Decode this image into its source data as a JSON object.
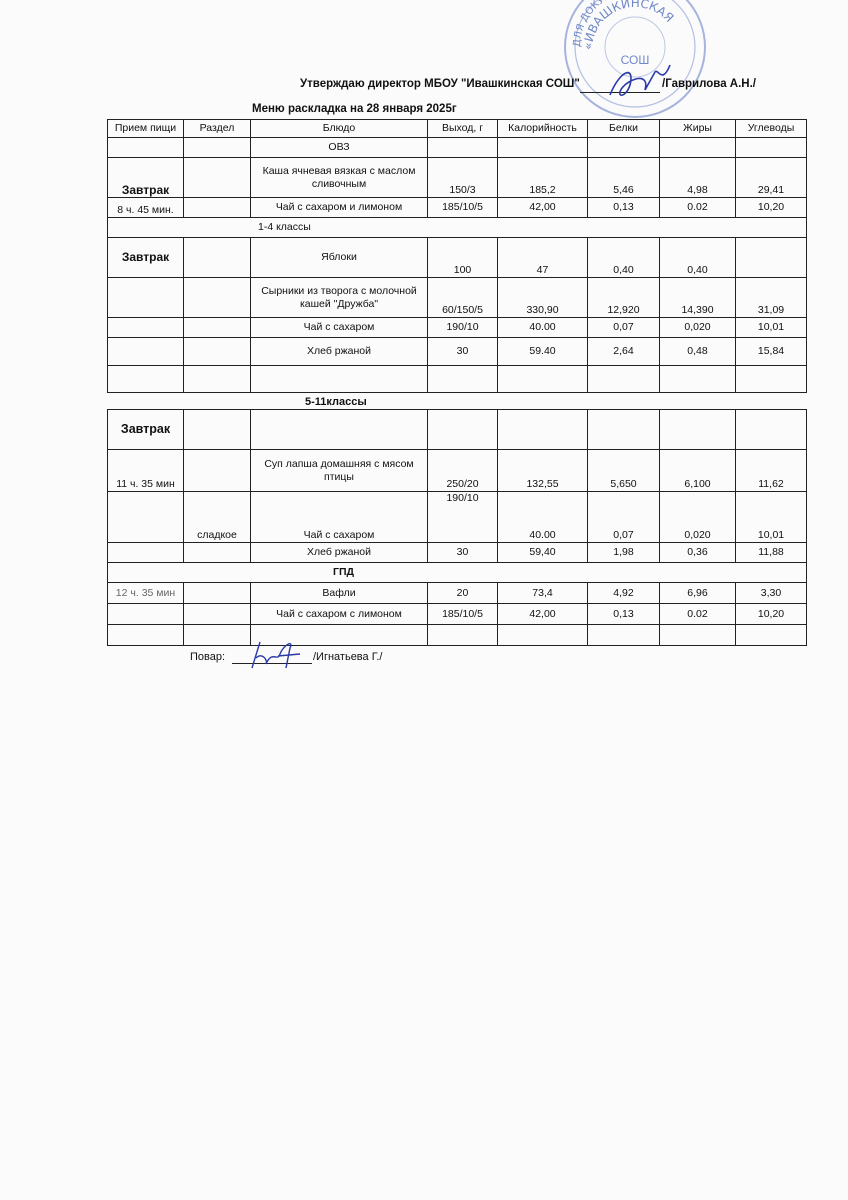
{
  "header": {
    "approval": "Утверждаю директор МБОУ \"Ивашкинская СОШ\"",
    "director": "/Гаврилова А.Н./",
    "title": "Меню раскладка на 28 января  2025г"
  },
  "stamp": {
    "text_outer": "ДЛЯ ДОКУМЕНТОВ",
    "text_mid": "«ИВАШКИНСКАЯ",
    "text_inner": "СОШ",
    "color": "#6f86c9"
  },
  "columns": [
    "Прием пищи",
    "Раздел",
    "Блюдо",
    "Выход, г",
    "Калорийность",
    "Белки",
    "Жиры",
    "Углеводы"
  ],
  "table1": [
    {
      "cells": [
        "",
        "",
        "ОВЗ",
        "",
        "",
        "",
        "",
        ""
      ]
    },
    {
      "cells": [
        "Завтрак",
        "",
        "Каша ячневая вязкая с маслом сливочным",
        "150/3",
        "185,2",
        "5,46",
        "4,98",
        "29,41"
      ]
    },
    {
      "cells": [
        "8 ч. 45 мин.",
        "",
        "Чай с сахаром и лимоном",
        "185/10/5",
        "42,00",
        "0,13",
        "0.02",
        "10,20"
      ]
    },
    {
      "section": "1-4 классы"
    },
    {
      "cells": [
        "Завтрак",
        "",
        "Яблоки",
        "100",
        "47",
        "0,40",
        "0,40",
        ""
      ]
    },
    {
      "cells": [
        "",
        "",
        "Сырники из творога с молочной кашей \"Дружба\"",
        "60/150/5",
        "330,90",
        "12,920",
        "14,390",
        "31,09"
      ]
    },
    {
      "cells": [
        "",
        "",
        "Чай с сахаром",
        "190/10",
        "40.00",
        "0,07",
        "0,020",
        "10,01"
      ]
    },
    {
      "cells": [
        "",
        "",
        "Хлеб ржаной",
        "30",
        "59.40",
        "2,64",
        "0,48",
        "15,84"
      ]
    },
    {
      "cells": [
        "",
        "",
        "",
        "",
        "",
        "",
        "",
        ""
      ]
    }
  ],
  "section2_title": "5-11классы",
  "table2": [
    {
      "cells": [
        "Завтрак",
        "",
        "",
        "",
        "",
        "",
        "",
        ""
      ]
    },
    {
      "cells": [
        "11 ч. 35 мин",
        "",
        "Суп лапша домашняя с мясом птицы",
        "250/20",
        "132,55",
        "5,650",
        "6,100",
        "11,62"
      ]
    },
    {
      "cells": [
        "",
        "сладкое",
        "Чай с сахаром",
        "190/10",
        "40.00",
        "0,07",
        "0,020",
        "10,01"
      ]
    },
    {
      "cells": [
        "",
        "",
        "Хлеб ржаной",
        "30",
        "59,40",
        "1,98",
        "0,36",
        "11,88"
      ]
    },
    {
      "section": "ГПД"
    },
    {
      "cells": [
        "12 ч. 35 мин",
        "",
        "Вафли",
        "20",
        "73,4",
        "4,92",
        "6,96",
        "3,30"
      ]
    },
    {
      "cells": [
        "",
        "",
        "Чай с сахаром с лимоном",
        "185/10/5",
        "42,00",
        "0,13",
        "0.02",
        "10,20"
      ]
    },
    {
      "cells": [
        "",
        "",
        "",
        "",
        "",
        "",
        "",
        ""
      ]
    }
  ],
  "footer": {
    "cook_label": "Повар:",
    "cook_name": "/Игнатьева Г./"
  }
}
